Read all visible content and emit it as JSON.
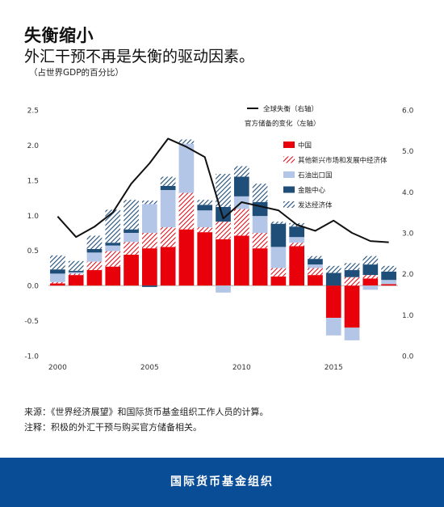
{
  "header": {
    "title": "失衡缩小",
    "subtitle": "外汇干预不再是失衡的驱动因素。",
    "unit_note": "（占世界GDP的百分比）"
  },
  "notes": {
    "source": "来源：《世界经济展望》和国际货币基金组织工作人员的计算。",
    "note": "注释：积极的外汇干预与购买官方储备相关。"
  },
  "footer": {
    "org": "国际货币基金组织"
  },
  "colors": {
    "china": "#e8000b",
    "emerging": "#e8000b",
    "oil": "#b4c6e7",
    "financial": "#1f4e79",
    "advanced": "#1f4e79",
    "line": "#111111",
    "footer": "#0a4d97"
  },
  "chart_data": {
    "type": "bar",
    "stacked": true,
    "x": [
      2000,
      2001,
      2002,
      2003,
      2004,
      2005,
      2006,
      2007,
      2008,
      2009,
      2010,
      2011,
      2012,
      2013,
      2014,
      2015,
      2016,
      2017,
      2018
    ],
    "xticks": [
      "2000",
      "2005",
      "2010",
      "2015"
    ],
    "left_axis": {
      "ylim": [
        -1.0,
        2.5
      ],
      "ticks": [
        "2.5",
        "2.0",
        "1.5",
        "1.0",
        "0.5",
        "0.0",
        "-0.5",
        "-1.0"
      ]
    },
    "right_axis": {
      "ylim": [
        0.0,
        6.0
      ],
      "ticks": [
        "6.0",
        "5.0",
        "4.0",
        "3.0",
        "2.0",
        "1.0",
        "0.0"
      ]
    },
    "legend_line_title": "官方储备的变化（左轴）",
    "series": [
      {
        "name": "中国",
        "key": "china",
        "pattern": "solid",
        "values": [
          0.03,
          0.15,
          0.22,
          0.27,
          0.44,
          0.53,
          0.55,
          0.8,
          0.76,
          0.66,
          0.71,
          0.53,
          0.13,
          0.56,
          0.15,
          -0.46,
          -0.6,
          0.1,
          0.02
        ]
      },
      {
        "name": "其他新兴市场和发展中经济体",
        "key": "emerging",
        "pattern": "hatch",
        "values": [
          0.02,
          0.02,
          0.12,
          0.22,
          0.18,
          0.22,
          0.28,
          0.52,
          0.07,
          0.25,
          0.38,
          0.22,
          0.12,
          0.05,
          0.1,
          0.0,
          0.12,
          0.05,
          0.0
        ]
      },
      {
        "name": "石油出口国",
        "key": "oil",
        "pattern": "solid",
        "values": [
          0.12,
          0.02,
          0.13,
          0.08,
          0.13,
          0.41,
          0.53,
          0.7,
          0.24,
          -0.1,
          0.18,
          0.24,
          0.3,
          0.08,
          0.05,
          -0.25,
          -0.18,
          -0.06,
          0.06
        ]
      },
      {
        "name": "金融中心",
        "key": "financial",
        "pattern": "solid",
        "values": [
          0.06,
          0.02,
          0.05,
          0.04,
          0.05,
          -0.02,
          0.06,
          0.0,
          0.08,
          0.21,
          0.28,
          0.2,
          0.33,
          0.15,
          0.08,
          0.18,
          0.1,
          0.15,
          0.12
        ]
      },
      {
        "name": "发达经济体",
        "key": "advanced",
        "pattern": "hatch",
        "values": [
          0.2,
          0.14,
          0.19,
          0.47,
          0.42,
          0.05,
          0.13,
          0.06,
          0.07,
          0.47,
          0.15,
          0.26,
          0.03,
          0.05,
          0.04,
          0.1,
          0.1,
          0.12,
          0.08
        ]
      }
    ],
    "line": {
      "name": "全球失衡（右轴）",
      "axis": "right",
      "values": [
        3.4,
        2.9,
        3.15,
        3.5,
        4.2,
        4.7,
        5.3,
        5.1,
        4.85,
        3.35,
        3.75,
        3.65,
        3.55,
        3.2,
        3.05,
        3.3,
        3.0,
        2.8,
        2.77
      ]
    }
  }
}
